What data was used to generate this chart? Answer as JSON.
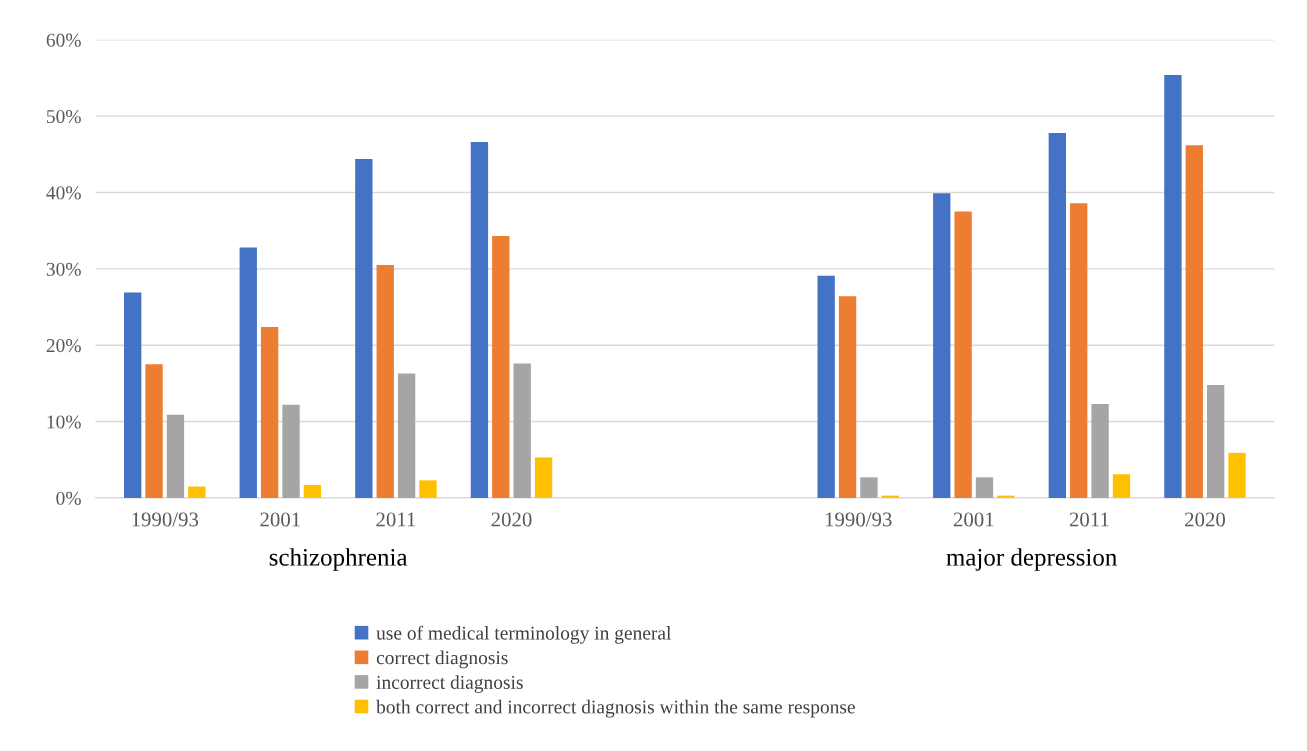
{
  "chart_data": {
    "type": "bar",
    "categories": [
      "1990/93",
      "2001",
      "2011",
      "2020",
      null,
      null,
      "1990/93",
      "2001",
      "2011",
      "2020"
    ],
    "series": [
      {
        "name": "use of medical terminology in general",
        "color": "#4472c4",
        "values": [
          26.9,
          32.8,
          44.4,
          46.6,
          null,
          null,
          29.1,
          39.9,
          47.8,
          55.4
        ]
      },
      {
        "name": "correct diagnosis",
        "color": "#ed7d31",
        "values": [
          17.5,
          22.4,
          30.5,
          34.3,
          null,
          null,
          26.4,
          37.5,
          38.6,
          46.2
        ]
      },
      {
        "name": "incorrect diagnosis",
        "color": "#a5a5a5",
        "values": [
          10.9,
          12.2,
          16.3,
          17.6,
          null,
          null,
          2.7,
          2.7,
          12.3,
          14.8
        ]
      },
      {
        "name": "both correct and incorrect diagnosis within the same response",
        "color": "#ffc000",
        "values": [
          1.5,
          1.7,
          2.3,
          5.3,
          null,
          null,
          0.3,
          0.3,
          3.1,
          5.9
        ]
      }
    ],
    "annotations": [
      "schizophrenia",
      "major depression"
    ],
    "ylim": [
      0,
      60
    ],
    "yticks": [
      {
        "value": 0,
        "label": "0%"
      },
      {
        "value": 10,
        "label": "10%"
      },
      {
        "value": 20,
        "label": "20%"
      },
      {
        "value": 30,
        "label": "30%"
      },
      {
        "value": 40,
        "label": "40%"
      },
      {
        "value": 50,
        "label": "50%"
      },
      {
        "value": 60,
        "label": "60%"
      }
    ],
    "grid": "y",
    "legend": "bottom"
  }
}
